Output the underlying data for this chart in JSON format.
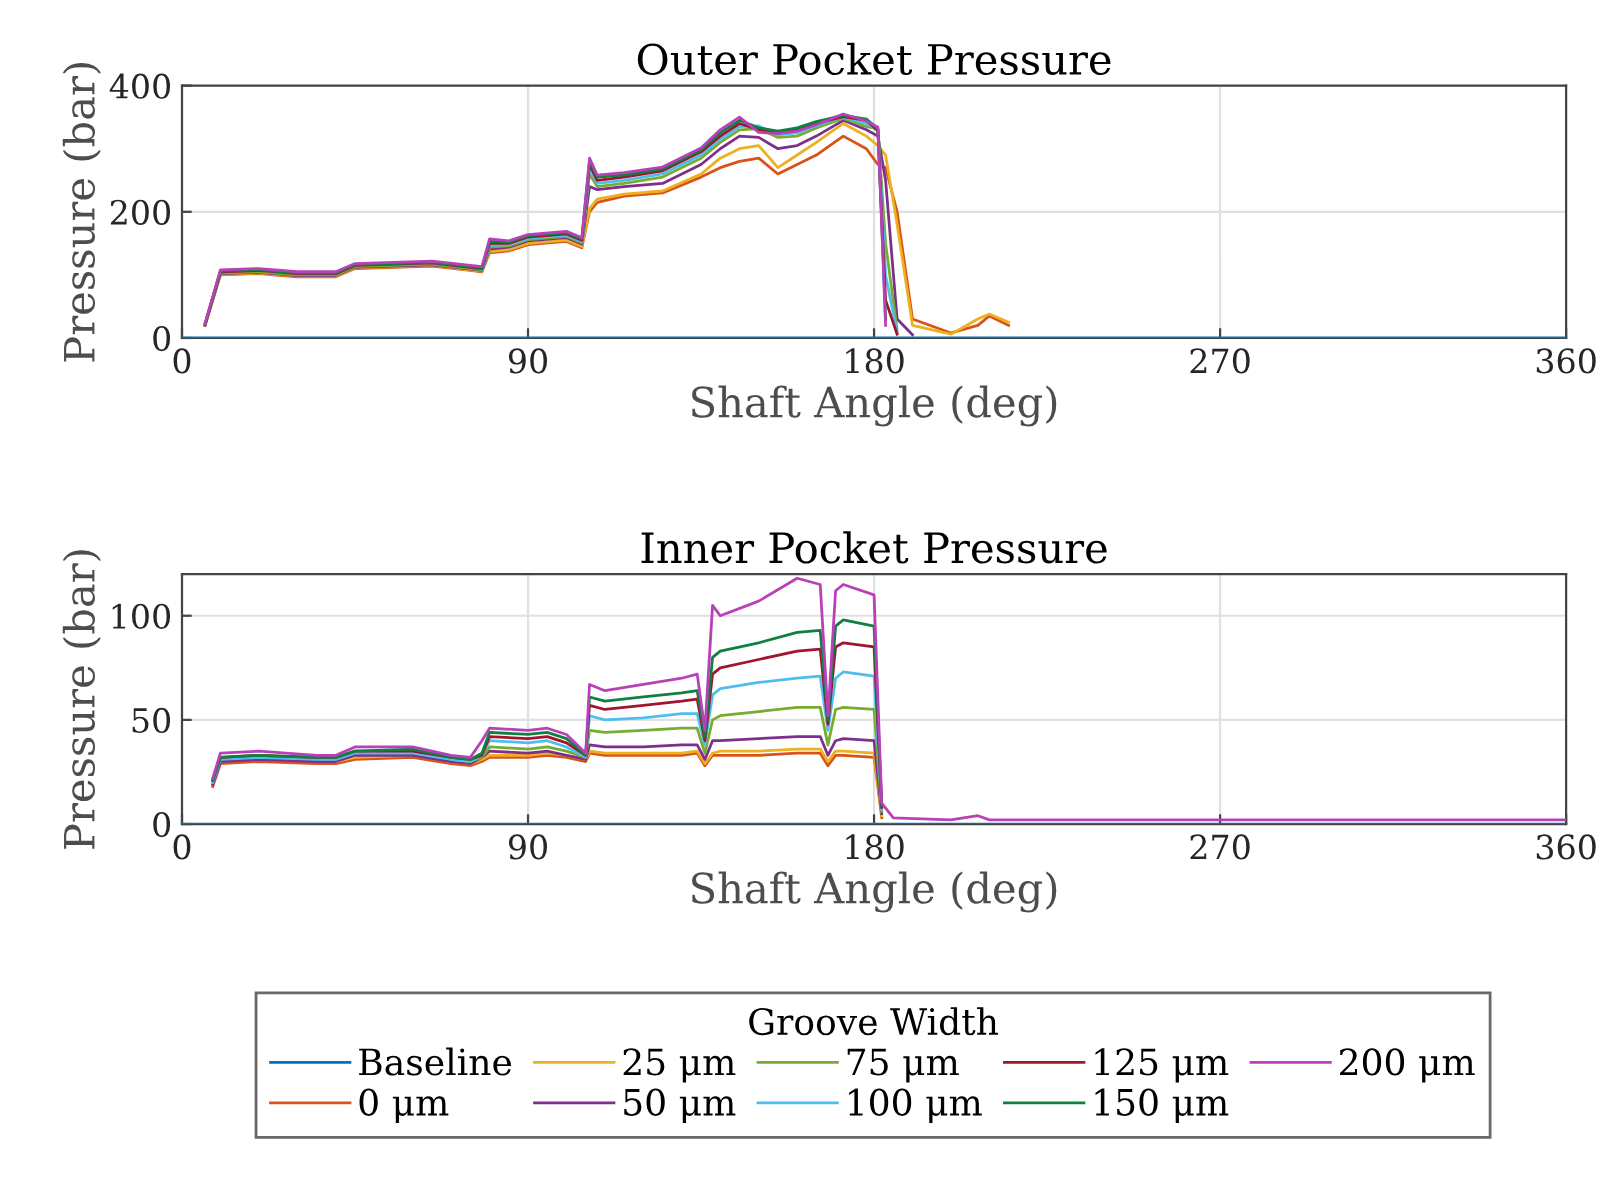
{
  "chart_data": [
    {
      "type": "line",
      "title": "Outer Pocket Pressure",
      "xlabel": "Shaft Angle (deg)",
      "ylabel": "Pressure (bar)",
      "xlim": [
        0,
        360
      ],
      "xticks": [
        0,
        90,
        180,
        270,
        360
      ],
      "ylim": [
        0,
        400
      ],
      "yticks": [
        0,
        200,
        400
      ],
      "grid": true,
      "legend": "bottom",
      "x": [
        0,
        4,
        6,
        10,
        20,
        30,
        40,
        45,
        55,
        65,
        75,
        78,
        80,
        85,
        90,
        100,
        104,
        106,
        108,
        115,
        125,
        135,
        140,
        145,
        150,
        155,
        160,
        165,
        172,
        178,
        181,
        183,
        186,
        190,
        200,
        207,
        210,
        215,
        220,
        240,
        300,
        360
      ],
      "series": [
        {
          "name": "Baseline",
          "color": "#0072bd",
          "values": [
            0,
            0,
            0,
            0,
            0,
            0,
            0,
            0,
            0,
            0,
            0,
            0,
            0,
            0,
            0,
            0,
            0,
            0,
            0,
            0,
            0,
            0,
            0,
            0,
            0,
            0,
            0,
            0,
            0,
            0,
            0,
            0,
            0,
            0,
            0,
            0,
            0,
            0,
            0,
            0,
            0,
            0
          ]
        },
        {
          "name": "0 μm",
          "color": "#d95319",
          "values": [
            null,
            null,
            20,
            100,
            102,
            97,
            97,
            110,
            112,
            114,
            107,
            105,
            135,
            138,
            148,
            153,
            143,
            200,
            215,
            225,
            230,
            255,
            270,
            280,
            285,
            260,
            275,
            290,
            320,
            300,
            275,
            270,
            200,
            30,
            8,
            20,
            35,
            20,
            null,
            null,
            null,
            null
          ]
        },
        {
          "name": "25 μm",
          "color": "#edb120",
          "values": [
            null,
            null,
            20,
            101,
            103,
            98,
            98,
            111,
            113,
            115,
            108,
            106,
            137,
            140,
            150,
            155,
            145,
            205,
            220,
            228,
            233,
            260,
            285,
            300,
            305,
            270,
            290,
            310,
            340,
            320,
            305,
            290,
            180,
            20,
            6,
            30,
            38,
            25,
            null,
            null,
            null,
            null
          ]
        },
        {
          "name": "50 μm",
          "color": "#7e2f8e",
          "values": [
            null,
            null,
            20,
            102,
            104,
            99,
            99,
            112,
            114,
            116,
            109,
            107,
            141,
            144,
            154,
            159,
            149,
            240,
            235,
            240,
            245,
            275,
            300,
            320,
            318,
            300,
            305,
            320,
            345,
            330,
            320,
            250,
            30,
            5,
            null,
            null,
            null,
            null,
            null,
            null,
            null,
            null
          ]
        },
        {
          "name": "75 μm",
          "color": "#77ac30",
          "values": [
            null,
            null,
            21,
            103,
            105,
            100,
            100,
            113,
            115,
            117,
            110,
            108,
            144,
            146,
            156,
            161,
            151,
            260,
            240,
            245,
            255,
            285,
            310,
            330,
            332,
            318,
            320,
            333,
            348,
            335,
            332,
            150,
            12,
            null,
            null,
            null,
            null,
            null,
            null,
            null,
            null,
            null
          ]
        },
        {
          "name": "100 μm",
          "color": "#4dbeee",
          "values": [
            null,
            null,
            null,
            null,
            null,
            null,
            null,
            null,
            null,
            null,
            null,
            109,
            147,
            148,
            158,
            163,
            153,
            270,
            245,
            250,
            260,
            290,
            315,
            335,
            336,
            322,
            325,
            337,
            350,
            340,
            330,
            100,
            8,
            null,
            null,
            null,
            null,
            null,
            null,
            null,
            null,
            null
          ]
        },
        {
          "name": "125 μm",
          "color": "#a2142f",
          "values": [
            null,
            null,
            22,
            105,
            107,
            102,
            102,
            115,
            117,
            119,
            112,
            110,
            150,
            150,
            160,
            165,
            155,
            275,
            250,
            255,
            265,
            295,
            320,
            340,
            330,
            326,
            330,
            340,
            351,
            345,
            328,
            60,
            6,
            null,
            null,
            null,
            null,
            null,
            null,
            null,
            null,
            null
          ]
        },
        {
          "name": "150 μm",
          "color": "#0f8040",
          "values": [
            null,
            null,
            22,
            106,
            108,
            103,
            103,
            116,
            118,
            120,
            113,
            111,
            153,
            152,
            162,
            167,
            157,
            280,
            255,
            258,
            268,
            298,
            325,
            345,
            333,
            328,
            333,
            343,
            353,
            347,
            331,
            30,
            null,
            null,
            null,
            null,
            null,
            null,
            null,
            null,
            null,
            null
          ]
        },
        {
          "name": "200 μm",
          "color": "#b940b9",
          "values": [
            null,
            null,
            23,
            108,
            110,
            105,
            105,
            118,
            120,
            122,
            115,
            113,
            157,
            154,
            164,
            169,
            159,
            285,
            258,
            262,
            271,
            301,
            330,
            350,
            326,
            324,
            328,
            338,
            355,
            344,
            334,
            20,
            null,
            null,
            null,
            null,
            null,
            null,
            null,
            null,
            null,
            null
          ]
        }
      ]
    },
    {
      "type": "line",
      "title": "Inner Pocket Pressure",
      "xlabel": "Shaft Angle (deg)",
      "ylabel": "Pressure (bar)",
      "xlim": [
        0,
        360
      ],
      "xticks": [
        0,
        90,
        180,
        270,
        360
      ],
      "ylim": [
        0,
        120
      ],
      "yticks": [
        0,
        50,
        100
      ],
      "grid": true,
      "legend": "bottom",
      "legend_title": "Groove Width",
      "x": [
        0,
        4,
        8,
        10,
        20,
        35,
        40,
        45,
        60,
        70,
        75,
        78,
        80,
        90,
        95,
        100,
        105,
        106,
        110,
        120,
        130,
        134,
        136,
        138,
        140,
        150,
        160,
        166,
        168,
        170,
        172,
        180,
        182,
        185,
        200,
        207,
        210,
        240,
        300,
        360
      ],
      "series": [
        {
          "name": "Baseline",
          "color": "#0072bd",
          "values": [
            0,
            0,
            0,
            0,
            0,
            0,
            0,
            0,
            0,
            0,
            0,
            0,
            0,
            0,
            0,
            0,
            0,
            0,
            0,
            0,
            0,
            0,
            0,
            0,
            0,
            0,
            0,
            0,
            0,
            0,
            0,
            0,
            0,
            0,
            0,
            0,
            0,
            0,
            0,
            0
          ]
        },
        {
          "name": "0 μm",
          "color": "#d95319",
          "values": [
            null,
            null,
            18,
            29,
            30,
            29,
            29,
            31,
            32,
            29,
            28,
            30,
            32,
            32,
            33,
            32,
            30,
            34,
            33,
            33,
            33,
            34,
            28,
            33,
            33,
            33,
            34,
            34,
            28,
            33,
            33,
            32,
            3,
            null,
            null,
            null,
            null,
            null,
            null,
            null
          ]
        },
        {
          "name": "25 μm",
          "color": "#edb120",
          "values": [
            null,
            null,
            null,
            null,
            null,
            30,
            30,
            32,
            33,
            30,
            29,
            31,
            33,
            33,
            34,
            33,
            31,
            35,
            34,
            34,
            34,
            35,
            29,
            34,
            35,
            35,
            36,
            36,
            30,
            35,
            35,
            34,
            4,
            null,
            null,
            null,
            null,
            null,
            null,
            null
          ]
        },
        {
          "name": "50 μm",
          "color": "#7e2f8e",
          "values": [
            null,
            null,
            19,
            30,
            31,
            30,
            30,
            33,
            33,
            30,
            29,
            32,
            35,
            34,
            35,
            33,
            31,
            38,
            37,
            37,
            38,
            38,
            31,
            40,
            40,
            41,
            42,
            42,
            33,
            40,
            41,
            40,
            5,
            null,
            null,
            null,
            null,
            null,
            null,
            null
          ]
        },
        {
          "name": "75 μm",
          "color": "#77ac30",
          "values": [
            null,
            null,
            null,
            null,
            null,
            null,
            null,
            null,
            null,
            31,
            30,
            32,
            37,
            36,
            37,
            35,
            32,
            45,
            44,
            45,
            46,
            46,
            34,
            50,
            52,
            54,
            56,
            56,
            38,
            55,
            56,
            55,
            6,
            null,
            null,
            null,
            null,
            null,
            null,
            null
          ]
        },
        {
          "name": "100 μm",
          "color": "#4dbeee",
          "values": [
            null,
            null,
            20,
            31,
            32,
            31,
            31,
            34,
            34,
            31,
            30,
            33,
            40,
            39,
            40,
            37,
            32,
            52,
            50,
            51,
            53,
            53,
            38,
            62,
            65,
            68,
            70,
            71,
            45,
            70,
            73,
            71,
            7,
            null,
            null,
            null,
            null,
            null,
            null,
            null
          ]
        },
        {
          "name": "125 μm",
          "color": "#a2142f",
          "values": [
            null,
            null,
            21,
            32,
            33,
            32,
            32,
            35,
            35,
            32,
            31,
            33,
            42,
            41,
            42,
            39,
            33,
            57,
            55,
            57,
            59,
            60,
            40,
            72,
            75,
            79,
            83,
            84,
            48,
            85,
            87,
            85,
            8,
            null,
            null,
            null,
            null,
            null,
            null,
            null
          ]
        },
        {
          "name": "150 μm",
          "color": "#0f8040",
          "values": [
            null,
            null,
            21,
            32,
            33,
            32,
            32,
            35,
            36,
            32,
            31,
            34,
            44,
            43,
            44,
            41,
            33,
            61,
            59,
            61,
            63,
            64,
            42,
            80,
            83,
            87,
            92,
            93,
            50,
            95,
            98,
            95,
            9,
            null,
            null,
            null,
            null,
            null,
            null,
            null
          ]
        },
        {
          "name": "200 μm",
          "color": "#b940b9",
          "values": [
            null,
            null,
            22,
            34,
            35,
            33,
            33,
            37,
            37,
            33,
            32,
            40,
            46,
            45,
            46,
            43,
            34,
            67,
            64,
            67,
            70,
            72,
            45,
            105,
            100,
            107,
            118,
            115,
            52,
            112,
            115,
            110,
            10,
            3,
            2,
            4,
            2,
            2,
            2,
            2
          ]
        }
      ]
    }
  ]
}
